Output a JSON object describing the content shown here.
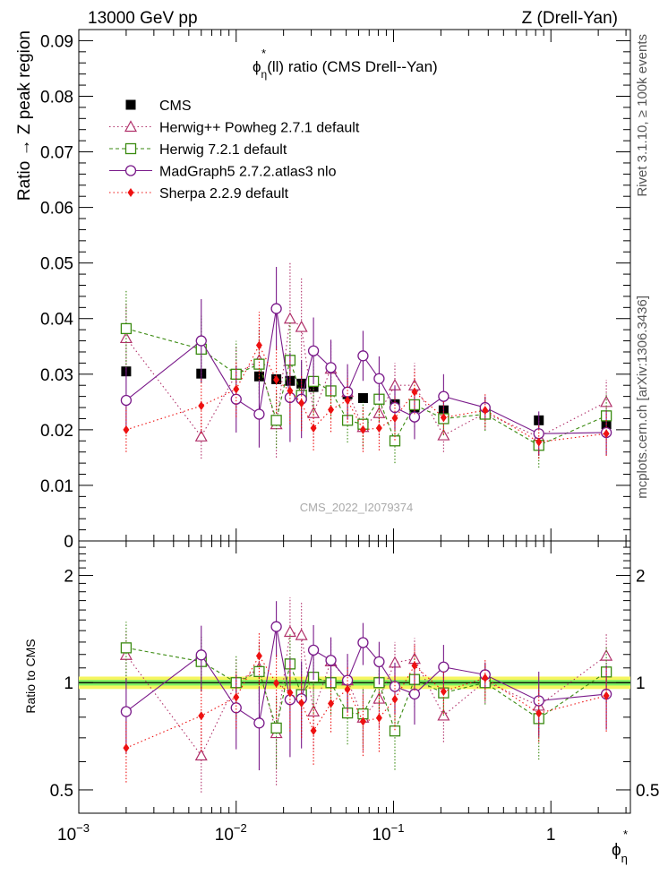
{
  "header": {
    "left": "13000 GeV pp",
    "right": "Z (Drell-Yan)"
  },
  "side_labels": {
    "rivet": "Rivet 3.1.10, ≥ 100k events",
    "mcplots": "mcplots.cern.ch [arXiv:1306.3436]"
  },
  "watermark": "CMS_2022_I2079374",
  "colors": {
    "cms": "#000000",
    "herwigpp": "#b0306a",
    "herwig7": "#3a8a10",
    "madgraph": "#7a1a8a",
    "sherpa": "#ee1111",
    "band_green": "#7cf060",
    "band_yellow": "#f5f560"
  },
  "chart_data": [
    {
      "type": "scatter",
      "title": "ϕ*η(ll) ratio (CMS Drell--Yan)",
      "title_parts": {
        "phi": "ϕ",
        "star": "*",
        "eta": "η",
        "rest": "(ll) ratio (CMS Drell--Yan)"
      },
      "ylabel": "Ratio → Z peak region",
      "xlabel_parts": {
        "phi": "ϕ",
        "star": "*",
        "eta": "η"
      },
      "xscale": "log",
      "xlim": [
        0.001,
        3.2
      ],
      "ylim": [
        0,
        0.092
      ],
      "yticks": [
        0,
        0.01,
        0.02,
        0.03,
        0.04,
        0.05,
        0.06,
        0.07,
        0.08,
        0.09
      ],
      "ytick_labels": [
        "0",
        "0.01",
        "0.02",
        "0.03",
        "0.04",
        "0.05",
        "0.06",
        "0.07",
        "0.08",
        "0.09"
      ],
      "legend_position": "top-left",
      "x": [
        0.002,
        0.006,
        0.01,
        0.014,
        0.018,
        0.022,
        0.026,
        0.031,
        0.04,
        0.051,
        0.064,
        0.081,
        0.102,
        0.136,
        0.208,
        0.382,
        0.838,
        2.25
      ],
      "series": [
        {
          "name": "CMS",
          "key": "cms",
          "marker": "filled-square",
          "values": [
            0.0305,
            0.0301,
            0.03,
            0.0296,
            0.0291,
            0.0288,
            0.0283,
            0.0277,
            0.027,
            0.0264,
            0.0257,
            0.0255,
            0.0246,
            0.024,
            0.0235,
            0.0228,
            0.0217,
            0.021
          ]
        },
        {
          "name": "Herwig++ Powheg 2.7.1 default",
          "key": "herwigpp",
          "marker": "open-triangle",
          "line": "dotted",
          "values": [
            0.0365,
            0.0188,
            0.03,
            0.0325,
            0.021,
            0.04,
            0.0385,
            0.023,
            0.031,
            0.0268,
            0.0205,
            0.023,
            0.028,
            0.028,
            0.019,
            0.023,
            0.0187,
            0.025
          ],
          "errors": [
            0.006,
            0.004,
            0.005,
            0.006,
            0.006,
            0.01,
            0.009,
            0.005,
            0.005,
            0.004,
            0.004,
            0.004,
            0.004,
            0.004,
            0.003,
            0.003,
            0.003,
            0.004
          ]
        },
        {
          "name": "Herwig 7.2.1 default",
          "key": "herwig7",
          "marker": "open-square",
          "line": "dashed",
          "values": [
            0.0382,
            0.0345,
            0.03,
            0.0318,
            0.0217,
            0.0325,
            0.0262,
            0.0287,
            0.027,
            0.0217,
            0.021,
            0.0255,
            0.018,
            0.0245,
            0.022,
            0.0228,
            0.0172,
            0.0225
          ],
          "errors": [
            0.007,
            0.006,
            0.006,
            0.006,
            0.005,
            0.007,
            0.006,
            0.006,
            0.005,
            0.004,
            0.004,
            0.004,
            0.004,
            0.004,
            0.003,
            0.003,
            0.004,
            0.004
          ]
        },
        {
          "name": "MadGraph5 2.7.2.atlas3 nlo",
          "key": "madgraph",
          "marker": "open-circle",
          "line": "solid",
          "values": [
            0.0253,
            0.036,
            0.0255,
            0.0228,
            0.0418,
            0.0258,
            0.0255,
            0.0342,
            0.0312,
            0.0268,
            0.0333,
            0.0292,
            0.024,
            0.0223,
            0.026,
            0.024,
            0.0193,
            0.0195
          ],
          "errors": [
            0.006,
            0.0075,
            0.006,
            0.006,
            0.0075,
            0.008,
            0.007,
            0.006,
            0.005,
            0.005,
            0.0045,
            0.004,
            0.004,
            0.004,
            0.004,
            0.002,
            0.004,
            0.004
          ]
        },
        {
          "name": "Sherpa 2.2.9 default",
          "key": "sherpa",
          "marker": "filled-diamond",
          "line": "dotted",
          "values": [
            0.02,
            0.0243,
            0.0273,
            0.0352,
            0.029,
            0.027,
            0.0248,
            0.0203,
            0.0236,
            0.0253,
            0.02,
            0.0203,
            0.0221,
            0.0268,
            0.0222,
            0.0235,
            0.0178,
            0.0193
          ],
          "errors": [
            0.004,
            0.005,
            0.005,
            0.006,
            0.006,
            0.006,
            0.005,
            0.004,
            0.004,
            0.004,
            0.004,
            0.004,
            0.004,
            0.004,
            0.003,
            0.003,
            0.003,
            0.004
          ]
        }
      ]
    },
    {
      "type": "scatter",
      "ylabel": "Ratio to CMS",
      "xscale": "log",
      "yscale": "log",
      "xlim": [
        0.001,
        3.2
      ],
      "ylim": [
        0.43,
        2.5
      ],
      "yticks": [
        0.5,
        1,
        2
      ],
      "ytick_labels": [
        "0.5",
        "1",
        "2"
      ],
      "xticks": [
        0.001,
        0.01,
        0.1,
        1
      ],
      "xtick_labels": [
        {
          "base": "10",
          "exp": "−3"
        },
        {
          "base": "10",
          "exp": "−2"
        },
        {
          "base": "10",
          "exp": "−1"
        },
        {
          "base": "1",
          "exp": ""
        }
      ],
      "reference_line": 1,
      "note": "ratios of each generator to CMS, same x values and series as the upper panel"
    }
  ]
}
